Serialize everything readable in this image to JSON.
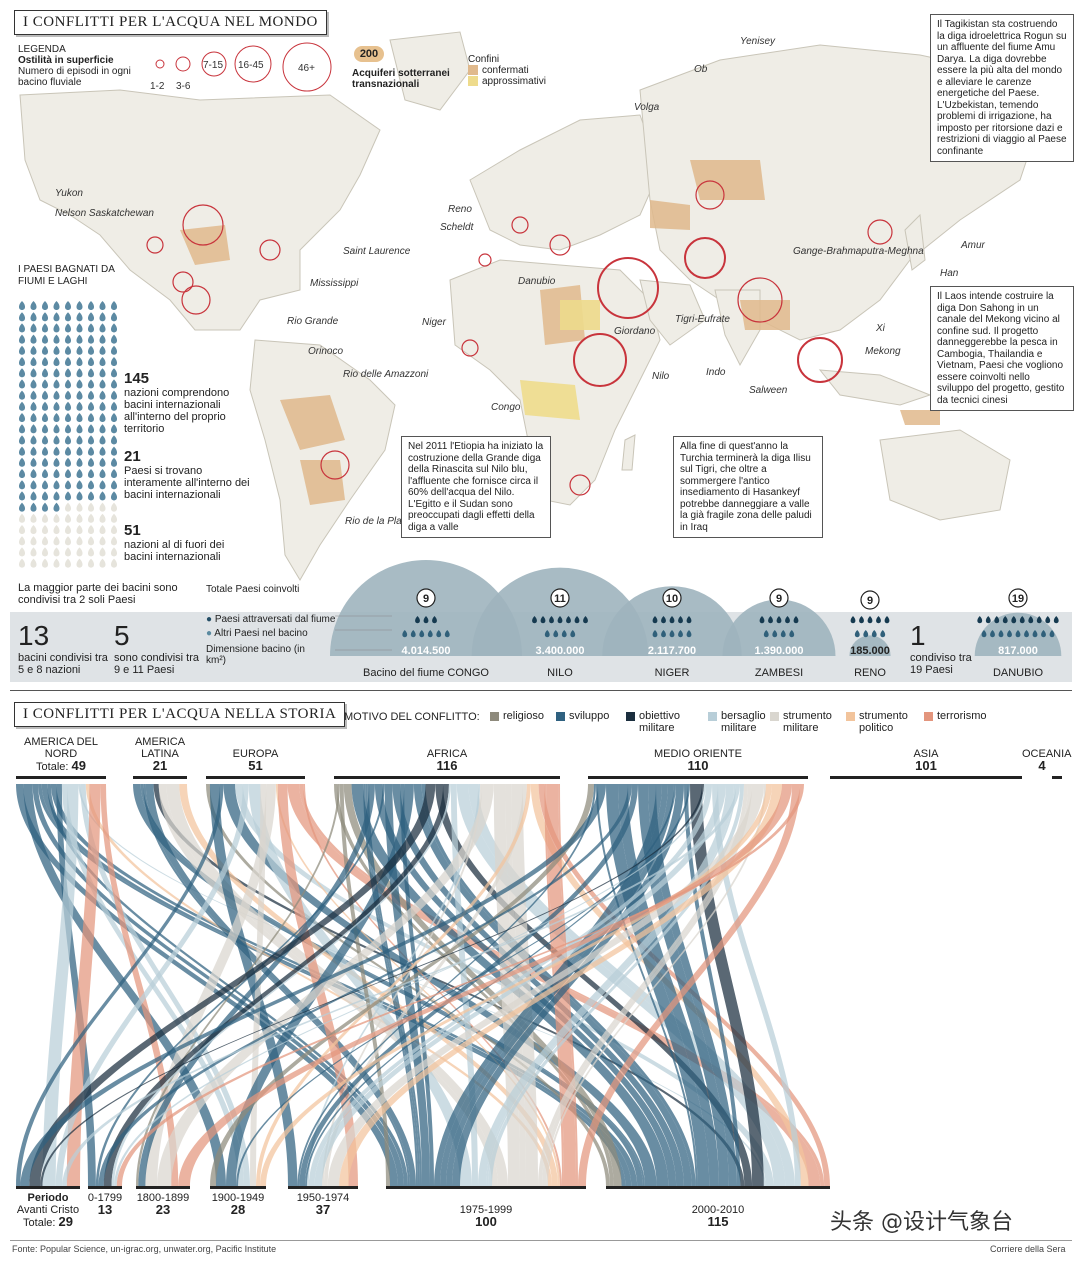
{
  "map_section": {
    "title": "I CONFLITTI PER L'ACQUA NEL MONDO",
    "legend": {
      "title": "LEGENDA",
      "subtitle": "Ostilità in superficie",
      "desc": "Numero di episodi in ogni bacino fluviale",
      "circle_labels": [
        "1-2",
        "3-6",
        "7-15",
        "16-45",
        "46+"
      ],
      "aquifer_value": "200",
      "aquifer_label": "Acquiferi sotterranei transnazionali",
      "borders_title": "Confini",
      "borders_confirmed": "confermati",
      "borders_approx": "approssimativi"
    },
    "rivers": [
      "Yenisey",
      "Ob",
      "Volga",
      "Yukon",
      "Nelson Saskatchewan",
      "Saint Laurence",
      "Mississippi",
      "Rio Grande",
      "Reno",
      "Scheldt",
      "Danubio",
      "Niger",
      "Giordano",
      "Tigri-Eufrate",
      "Orinoco",
      "Rio delle Amazzoni",
      "Congo",
      "Nilo",
      "Indo",
      "Gange-Brahmaputra-Meghna",
      "Salween",
      "Mekong",
      "Xi",
      "Amur",
      "Han",
      "Rio de la Plata"
    ],
    "notes": {
      "tajik": "Il Tagikistan sta costruendo la diga idroelettrica Rogun su un affluente del fiume Amu Darya. La diga dovrebbe essere la più alta del mondo e alleviare le carenze energetiche del Paese. L'Uzbekistan, temendo problemi di irrigazione, ha imposto per ritorsione dazi e restrizioni di viaggio al Paese confinante",
      "laos": "Il Laos intende costruire la diga Don Sahong in un canale del Mekong vicino al confine sud. Il progetto danneggerebbe la pesca in Cambogia, Thailandia e Vietnam, Paesi che vogliono essere coinvolti nello sviluppo del progetto, gestito da tecnici cinesi",
      "ethiopia": "Nel 2011 l'Etiopia ha iniziato la costruzione della Grande diga della Rinascita sul Nilo blu, l'affluente che fornisce circa il 60% dell'acqua del Nilo. L'Egitto e il Sudan sono preoccupati dagli effetti della diga a valle",
      "turkey": "Alla fine di quest'anno la Turchia terminerà la diga Ilisu sul Tigri, che oltre a sommergere l'antico insediamento di Hasankeyf potrebbe danneggiare a valle la già fragile zona delle paludi in Iraq"
    },
    "countries": {
      "title": "I PAESI BAGNATI DA FIUMI E LAGHI",
      "groups": [
        {
          "value": "145",
          "label": "nazioni comprendono bacini internazionali all'interno del proprio territorio"
        },
        {
          "value": "21",
          "label": "Paesi si trovano interamente all'interno dei bacini internazionali"
        },
        {
          "value": "51",
          "label": "nazioni al di fuori dei bacini internazionali"
        }
      ]
    },
    "shared_note": "La maggior parte dei bacini sono condivisi tra 2 soli Paesi",
    "shared_stats": [
      {
        "value": "13",
        "label": "bacini condivisi tra 5 e 8 nazioni"
      },
      {
        "value": "5",
        "label": "sono condivisi tra 9 e 11 Paesi"
      },
      {
        "value": "1",
        "label": "condiviso tra 19 Paesi"
      }
    ],
    "basin_legend": {
      "total": "Totale Paesi coinvolti",
      "crossed": "Paesi attraversati dal fiume",
      "others": "Altri Paesi nel bacino",
      "size": "Dimensione bacino (in km²)"
    }
  },
  "chart_data": [
    {
      "type": "bar",
      "title": "",
      "categories": [
        "Bacino del fiume CONGO",
        "NILO",
        "NIGER",
        "ZAMBESI",
        "RENO",
        "DANUBIO"
      ],
      "series": [
        {
          "name": "Totale Paesi coinvolti",
          "values": [
            9,
            11,
            10,
            9,
            9,
            19
          ]
        },
        {
          "name": "Paesi attraversati dal fiume",
          "values": [
            3,
            7,
            5,
            5,
            5,
            10
          ]
        },
        {
          "name": "Altri Paesi nel bacino",
          "values": [
            6,
            4,
            5,
            4,
            4,
            9
          ]
        },
        {
          "name": "Dimensione bacino (in km²)",
          "values": [
            4014500,
            3400000,
            2117700,
            1390000,
            185000,
            817000
          ]
        }
      ],
      "value_labels": [
        "4.014.500",
        "3.400.000",
        "2.117.700",
        "1.390.000",
        "185.000",
        "817.000"
      ]
    },
    {
      "type": "area",
      "title": "I CONFLITTI PER L'ACQUA NELLA STORIA",
      "legend_title": "MOTIVO DEL CONFLITTO:",
      "motives": [
        {
          "name": "religioso",
          "color": "#8e8a7c"
        },
        {
          "name": "sviluppo",
          "color": "#2f6180"
        },
        {
          "name": "obiettivo militare",
          "color": "#1b2e3e"
        },
        {
          "name": "bersaglio militare",
          "color": "#b8ced8"
        },
        {
          "name": "strumento militare",
          "color": "#d9d6cf"
        },
        {
          "name": "strumento politico",
          "color": "#f2c49c"
        },
        {
          "name": "terrorismo",
          "color": "#e3957d"
        }
      ],
      "regions": [
        {
          "name": "AMERICA DEL NORD",
          "prefix": "Totale:",
          "total": 49
        },
        {
          "name": "AMERICA LATINA",
          "prefix": "",
          "total": 21
        },
        {
          "name": "EUROPA",
          "prefix": "",
          "total": 51
        },
        {
          "name": "AFRICA",
          "prefix": "",
          "total": 116
        },
        {
          "name": "MEDIO ORIENTE",
          "prefix": "",
          "total": 110
        },
        {
          "name": "ASIA",
          "prefix": "",
          "total": 101
        },
        {
          "name": "OCEANIA",
          "prefix": "",
          "total": 4
        }
      ],
      "periods": [
        {
          "name": "Avanti Cristo",
          "title": "Periodo",
          "prefix": "Totale:",
          "total": 29
        },
        {
          "name": "0-1799",
          "title": "",
          "prefix": "",
          "total": 13
        },
        {
          "name": "1800-1899",
          "title": "",
          "prefix": "",
          "total": 23
        },
        {
          "name": "1900-1949",
          "title": "",
          "prefix": "",
          "total": 28
        },
        {
          "name": "1950-1974",
          "title": "",
          "prefix": "",
          "total": 37
        },
        {
          "name": "1975-1999",
          "title": "",
          "prefix": "",
          "total": 100
        },
        {
          "name": "2000-2010",
          "title": "",
          "prefix": "",
          "total": 115
        }
      ]
    }
  ],
  "footer": {
    "source": "Fonte: Popular Science, un-igrac.org, unwater.org, Pacific Institute",
    "credit": "Corriere della Sera",
    "watermark": "头条 @设计气象台"
  }
}
